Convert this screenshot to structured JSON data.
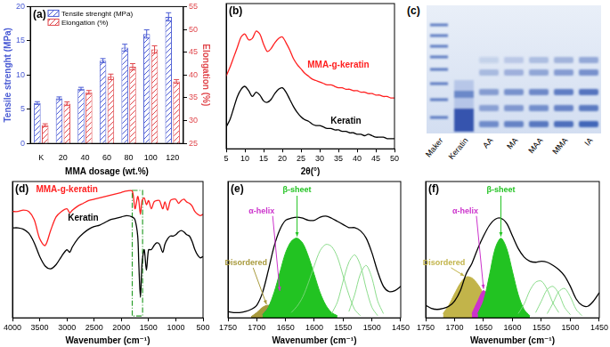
{
  "chart_data": [
    {
      "type": "bar",
      "title": "(a)",
      "categories": [
        "K",
        "20",
        "40",
        "60",
        "80",
        "100",
        "120"
      ],
      "x_label": "MMA dosage (wt.%)",
      "y_label": "Tensile strenght (MPa)",
      "y2_label": "Elongation (%)",
      "series": [
        {
          "name": "Tensile strenght (MPa)",
          "color": "#4a5bd4",
          "values": [
            5.9,
            6.6,
            8.0,
            12.1,
            14.0,
            16.0,
            18.5
          ],
          "errors": [
            0.2,
            0.2,
            0.2,
            0.3,
            0.5,
            0.6,
            0.6
          ]
        },
        {
          "name": "Elongation (%)",
          "color": "#e0474c",
          "axis": "y2",
          "values": [
            29.0,
            33.7,
            36.2,
            39.6,
            41.8,
            45.6,
            38.6
          ],
          "errors": [
            0.3,
            0.4,
            0.4,
            0.6,
            0.7,
            0.8,
            0.4
          ]
        }
      ],
      "ylim": [
        0,
        20
      ],
      "yticks": [
        0,
        5,
        10,
        15,
        20
      ],
      "y2lim": [
        25,
        55
      ],
      "y2ticks": [
        25,
        30,
        35,
        40,
        45,
        50,
        55
      ],
      "legend": "top-left",
      "grid": false
    },
    {
      "type": "line",
      "title": "(b)",
      "x_label": "2θ(°)",
      "x": [
        5,
        6,
        7,
        8,
        9,
        10,
        11,
        12,
        13,
        14,
        15,
        16,
        17,
        18,
        19,
        20,
        21,
        22,
        23,
        24,
        25,
        26,
        27,
        28,
        29,
        30,
        31,
        32,
        33,
        34,
        35,
        36,
        37,
        38,
        39,
        40,
        41,
        42,
        43,
        44,
        45,
        46,
        47,
        48,
        49,
        50
      ],
      "series": [
        {
          "name": "MMA-g-keratin",
          "color": "#ff2020",
          "values": [
            5.0,
            5.6,
            6.3,
            7.0,
            7.7,
            7.9,
            7.5,
            7.6,
            8.1,
            7.9,
            7.2,
            6.7,
            6.9,
            7.3,
            7.6,
            7.7,
            7.3,
            6.8,
            6.2,
            5.8,
            5.5,
            5.2,
            5.0,
            4.8,
            4.7,
            4.6,
            4.5,
            4.4,
            4.4,
            4.3,
            4.2,
            4.2,
            4.1,
            4.1,
            4.0,
            4.0,
            3.9,
            3.9,
            3.8,
            3.8,
            3.7,
            3.7,
            3.6,
            3.6,
            3.5,
            3.5
          ]
        },
        {
          "name": "Keratin",
          "color": "#000000",
          "values": [
            1.5,
            2.0,
            2.8,
            3.6,
            4.1,
            4.3,
            4.0,
            3.6,
            3.9,
            3.7,
            3.3,
            3.2,
            3.4,
            3.8,
            4.1,
            4.2,
            3.9,
            3.4,
            2.9,
            2.5,
            2.2,
            2.0,
            1.9,
            1.7,
            1.6,
            1.6,
            1.5,
            1.4,
            1.4,
            1.3,
            1.3,
            1.2,
            1.2,
            1.1,
            1.1,
            1.0,
            1.0,
            0.9,
            1.0,
            0.9,
            0.8,
            0.8,
            0.8,
            0.7,
            0.7,
            0.7
          ]
        }
      ],
      "xlim": [
        5,
        50
      ],
      "xticks": [
        5,
        10,
        15,
        20,
        25,
        30,
        35,
        40,
        45,
        50
      ],
      "ylim": [
        0,
        10
      ],
      "tick_labels": "x",
      "grid": false
    },
    {
      "type": "gel",
      "title": "(c)",
      "categories": [
        "Maker",
        "Keratin",
        "AA",
        "MA",
        "MAA",
        "MMA",
        "IA"
      ]
    },
    {
      "type": "line",
      "title": "(d)",
      "x_label": "Wavenumber (cm⁻¹)",
      "x": [
        4000,
        3900,
        3800,
        3700,
        3600,
        3500,
        3400,
        3300,
        3200,
        3100,
        3000,
        2950,
        2900,
        2800,
        2700,
        2600,
        2500,
        2400,
        2300,
        2200,
        2100,
        2000,
        1900,
        1800,
        1750,
        1700,
        1680,
        1650,
        1620,
        1580,
        1540,
        1500,
        1450,
        1400,
        1350,
        1300,
        1240,
        1200,
        1150,
        1100,
        1050,
        1000,
        950,
        900,
        850,
        800,
        750,
        700,
        650,
        600,
        550,
        500
      ],
      "series": [
        {
          "name": "MMA-g-keratin",
          "color": "#ff2020",
          "values": [
            7.8,
            7.8,
            7.9,
            7.8,
            7.2,
            5.8,
            5.3,
            6.4,
            7.4,
            7.8,
            8.0,
            7.7,
            7.9,
            8.2,
            8.4,
            8.6,
            8.7,
            8.8,
            8.9,
            9.0,
            9.1,
            9.2,
            9.3,
            9.3,
            8.0,
            8.9,
            8.6,
            7.6,
            8.6,
            8.8,
            8.3,
            8.6,
            8.0,
            8.5,
            8.6,
            8.6,
            8.0,
            8.5,
            7.9,
            8.6,
            8.7,
            8.7,
            8.4,
            8.6,
            8.7,
            8.5,
            8.4,
            8.2,
            7.8,
            7.6,
            7.5,
            7.6
          ]
        },
        {
          "name": "Keratin",
          "color": "#000000",
          "values": [
            6.6,
            6.6,
            6.5,
            6.2,
            5.5,
            4.5,
            3.8,
            3.6,
            3.9,
            4.5,
            5.0,
            4.8,
            5.2,
            5.8,
            6.2,
            6.5,
            6.7,
            6.8,
            7.0,
            7.2,
            7.3,
            7.4,
            7.5,
            7.4,
            7.2,
            6.0,
            4.0,
            1.5,
            4.0,
            5.0,
            3.5,
            5.0,
            5.0,
            5.3,
            5.5,
            5.4,
            4.8,
            5.4,
            5.8,
            6.0,
            6.0,
            6.1,
            6.3,
            6.4,
            6.3,
            6.1,
            6.0,
            5.6,
            5.0,
            4.6,
            4.4,
            4.5
          ]
        }
      ],
      "xlim": [
        4000,
        500
      ],
      "xticks": [
        4000,
        3500,
        3000,
        2500,
        2000,
        1500,
        1000,
        500
      ],
      "ylim": [
        0,
        10
      ],
      "highlight_range": [
        1800,
        1610
      ],
      "tick_labels": "x",
      "grid": false
    },
    {
      "type": "line",
      "title": "(e)",
      "x_label": "Wavenumber (cm⁻¹)",
      "series": [
        {
          "color": "#000000",
          "x": [
            1750,
            1740,
            1730,
            1720,
            1710,
            1700,
            1690,
            1680,
            1670,
            1660,
            1650,
            1640,
            1630,
            1620,
            1610,
            1600,
            1590,
            1580,
            1570,
            1560,
            1550,
            1540,
            1530,
            1520,
            1510,
            1500,
            1490,
            1480,
            1470,
            1460,
            1450
          ],
          "values": [
            0.6,
            0.5,
            0.5,
            0.6,
            0.8,
            1.2,
            2.4,
            4.5,
            6.8,
            8.4,
            9.3,
            9.5,
            9.6,
            9.5,
            9.3,
            9.3,
            9.6,
            9.7,
            9.5,
            9.2,
            8.9,
            8.6,
            8.6,
            8.3,
            7.6,
            6.2,
            4.4,
            3.0,
            2.5,
            2.6,
            3.0
          ]
        },
        {
          "name": "β-sheet",
          "type": "area",
          "color": "#22c322",
          "x": [
            1690,
            1680,
            1670,
            1660,
            1650,
            1640,
            1630,
            1620,
            1610,
            1600,
            1590,
            1580,
            1570,
            1560
          ],
          "values": [
            0.3,
            1.0,
            2.4,
            4.3,
            6.2,
            7.3,
            7.6,
            7.1,
            5.8,
            4.1,
            2.4,
            1.2,
            0.5,
            0.2
          ]
        },
        {
          "name": "α-helix",
          "type": "area",
          "color": "#cc33cc",
          "x": [
            1690,
            1680,
            1670,
            1660,
            1650,
            1640,
            1630
          ],
          "values": [
            0.3,
            1.0,
            2.0,
            2.4,
            1.8,
            0.8,
            0.2
          ]
        },
        {
          "name": "Disordered",
          "type": "area",
          "color": "#a89a3c",
          "x": [
            1710,
            1700,
            1690,
            1680,
            1670,
            1660,
            1650
          ],
          "values": [
            0.1,
            0.5,
            1.0,
            1.2,
            0.9,
            0.4,
            0.1
          ]
        },
        {
          "color": "#7fd87f",
          "x": [
            1640,
            1630,
            1620,
            1610,
            1600,
            1590,
            1580,
            1570,
            1560,
            1550,
            1540,
            1530,
            1520
          ],
          "values": [
            0.5,
            1.1,
            2.0,
            3.4,
            5.0,
            6.4,
            7.0,
            6.8,
            5.8,
            4.0,
            2.2,
            0.8,
            0.2
          ]
        },
        {
          "color": "#7fd87f",
          "x": [
            1570,
            1560,
            1550,
            1540,
            1530,
            1520,
            1510,
            1500,
            1490
          ],
          "values": [
            0.4,
            1.5,
            3.5,
            5.3,
            6.0,
            5.0,
            2.8,
            1.0,
            0.2
          ]
        },
        {
          "color": "#7fd87f",
          "x": [
            1540,
            1530,
            1520,
            1510,
            1500,
            1490,
            1480
          ],
          "values": [
            0.6,
            2.2,
            4.2,
            5.0,
            3.8,
            1.6,
            0.4
          ]
        }
      ],
      "xlim": [
        1750,
        1450
      ],
      "xticks": [
        1750,
        1700,
        1650,
        1600,
        1550,
        1500,
        1450
      ],
      "ylim": [
        0,
        13
      ],
      "tick_labels": "x",
      "grid": false
    },
    {
      "type": "line",
      "title": "(f)",
      "x_label": "Wavenumber (cm⁻¹)",
      "series": [
        {
          "color": "#000000",
          "x": [
            1750,
            1740,
            1730,
            1720,
            1710,
            1700,
            1690,
            1680,
            1670,
            1660,
            1650,
            1640,
            1630,
            1620,
            1610,
            1600,
            1590,
            1580,
            1570,
            1560,
            1550,
            1540,
            1530,
            1520,
            1510,
            1500,
            1490,
            1480,
            1470,
            1460,
            1450
          ],
          "values": [
            1.2,
            0.9,
            0.8,
            0.9,
            1.1,
            1.6,
            2.6,
            4.2,
            5.2,
            6.6,
            7.8,
            8.8,
            9.4,
            9.5,
            9.0,
            7.8,
            6.6,
            5.8,
            5.4,
            5.3,
            5.4,
            5.3,
            5.0,
            4.6,
            4.0,
            3.0,
            1.8,
            1.2,
            1.1,
            1.6,
            2.4
          ]
        },
        {
          "name": "β-sheet",
          "type": "area",
          "color": "#22c322",
          "x": [
            1660,
            1650,
            1640,
            1630,
            1620,
            1610,
            1600,
            1590,
            1580,
            1570
          ],
          "values": [
            0.4,
            1.6,
            4.0,
            6.6,
            7.6,
            6.6,
            4.4,
            2.2,
            0.8,
            0.2
          ]
        },
        {
          "name": "α-helix",
          "type": "area",
          "color": "#cc33cc",
          "x": [
            1670,
            1660,
            1650,
            1640,
            1630,
            1620
          ],
          "values": [
            0.4,
            1.6,
            2.6,
            1.8,
            0.6,
            0.1
          ]
        },
        {
          "name": "Disordered",
          "type": "area",
          "color": "#c2b44a",
          "x": [
            1720,
            1710,
            1700,
            1690,
            1680,
            1670,
            1660,
            1650,
            1640,
            1630,
            1620
          ],
          "values": [
            0.4,
            1.2,
            2.3,
            3.3,
            3.9,
            3.8,
            3.2,
            2.3,
            1.4,
            0.7,
            0.3
          ]
        },
        {
          "color": "#7fd87f",
          "x": [
            1590,
            1580,
            1570,
            1560,
            1550,
            1540,
            1530,
            1520
          ],
          "values": [
            0.4,
            1.3,
            2.6,
            3.4,
            3.5,
            2.7,
            1.4,
            0.5
          ]
        },
        {
          "color": "#7fd87f",
          "x": [
            1560,
            1550,
            1540,
            1530,
            1520,
            1510,
            1500
          ],
          "values": [
            0.5,
            1.6,
            2.7,
            3.0,
            2.3,
            1.0,
            0.3
          ]
        },
        {
          "color": "#7fd87f",
          "x": [
            1540,
            1530,
            1520,
            1510,
            1500,
            1490,
            1480
          ],
          "values": [
            0.4,
            1.4,
            2.5,
            2.8,
            2.0,
            0.8,
            0.2
          ]
        }
      ],
      "xlim": [
        1750,
        1450
      ],
      "xticks": [
        1750,
        1700,
        1650,
        1600,
        1550,
        1500,
        1450
      ],
      "ylim": [
        0,
        13
      ],
      "tick_labels": "x",
      "grid": false
    }
  ]
}
